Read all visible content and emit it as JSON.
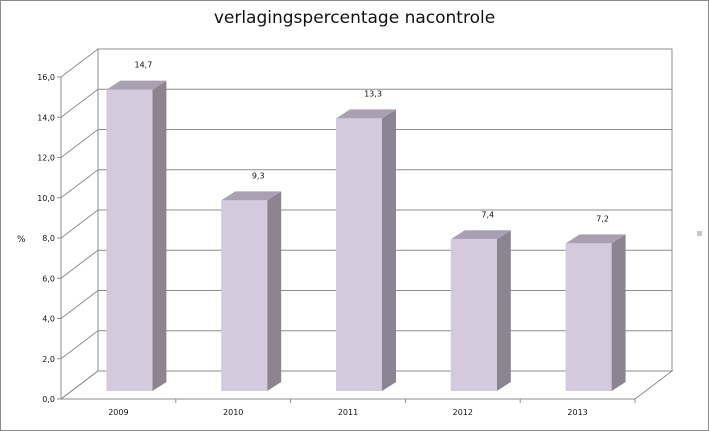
{
  "chart_data": {
    "type": "bar",
    "title": "verlagingspercentage nacontrole",
    "ylabel": "%",
    "xlabel": "",
    "categories": [
      "2009",
      "2010",
      "2011",
      "2012",
      "2013"
    ],
    "values": [
      14.7,
      9.3,
      13.3,
      7.4,
      7.2
    ],
    "value_labels": [
      "14,7",
      "9,3",
      "13,3",
      "7,4",
      "7,2"
    ],
    "y_ticks": [
      "0,0",
      "2,0",
      "4,0",
      "6,0",
      "8,0",
      "10,0",
      "12,0",
      "14,0",
      "16,0"
    ],
    "ylim": [
      0,
      16
    ],
    "grid": true,
    "legend_position": "right",
    "colors": {
      "bar_front": "#d3cbdd",
      "bar_top": "#a9a1b1",
      "bar_side": "#8a8590",
      "grid": "#8c8c8c",
      "wall": "#ffffff"
    }
  }
}
